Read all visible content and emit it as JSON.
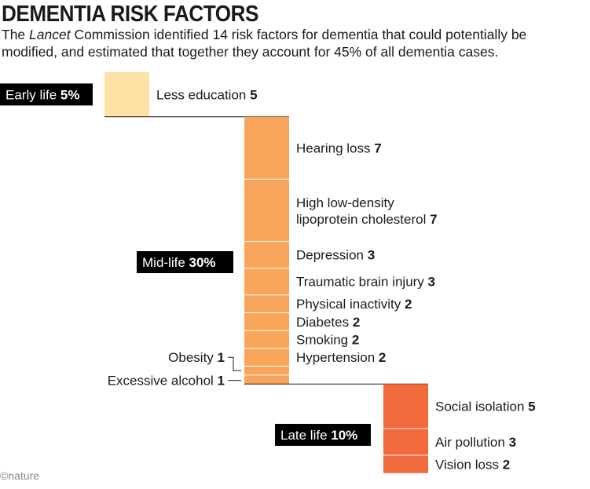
{
  "header": {
    "title": "DEMENTIA RISK FACTORS",
    "subtitle_prefix": "The ",
    "subtitle_italic": "Lancet",
    "subtitle_suffix": " Commission identified 14 risk factors for dementia that could potentially be modified, and estimated that together they account for 45% of all dementia cases."
  },
  "credit": "©nature",
  "colors": {
    "early": "#fde2a4",
    "mid": "#f8a55b",
    "late": "#f06a3c",
    "divider": "#ffffff",
    "connector": "#1a1a1a"
  },
  "chart_data": {
    "type": "waterfall",
    "unit": "%",
    "total": 45,
    "stages": [
      {
        "name": "Early life",
        "total": 5,
        "total_label": "5%",
        "factors": [
          {
            "label": "Less education",
            "value": 5
          }
        ]
      },
      {
        "name": "Mid-life",
        "total": 30,
        "total_label": "30%",
        "factors": [
          {
            "label": "Hearing loss",
            "value": 7
          },
          {
            "label": "High low-density lipoprotein cholesterol",
            "value": 7
          },
          {
            "label": "Depression",
            "value": 3
          },
          {
            "label": "Traumatic brain injury",
            "value": 3
          },
          {
            "label": "Physical inactivity",
            "value": 2
          },
          {
            "label": "Diabetes",
            "value": 2
          },
          {
            "label": "Smoking",
            "value": 2
          },
          {
            "label": "Hypertension",
            "value": 2
          },
          {
            "label": "Obesity",
            "value": 1
          },
          {
            "label": "Excessive alcohol",
            "value": 1
          }
        ]
      },
      {
        "name": "Late life",
        "total": 10,
        "total_label": "10%",
        "factors": [
          {
            "label": "Social isolation",
            "value": 5
          },
          {
            "label": "Air pollution",
            "value": 3
          },
          {
            "label": "Vision loss",
            "value": 2
          }
        ]
      }
    ]
  }
}
